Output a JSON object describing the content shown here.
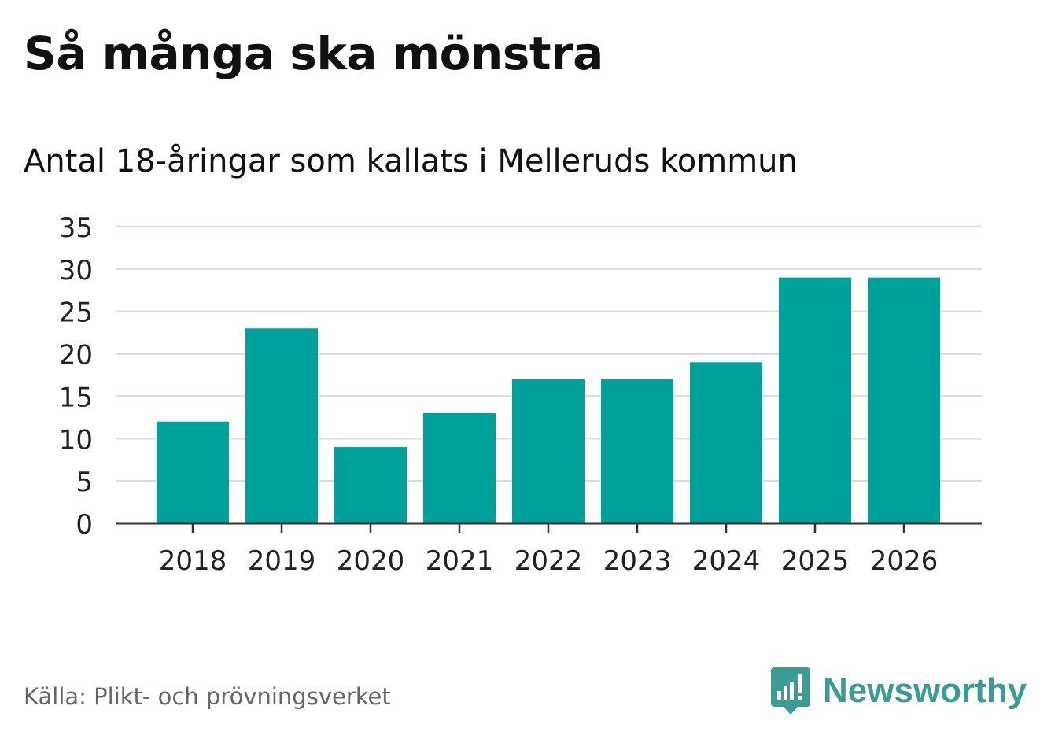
{
  "header": {
    "title": "Så många ska mönstra",
    "subtitle": "Antal 18-åringar som kallats i Melleruds kommun"
  },
  "footer": {
    "source": "Källa: Plikt- och prövningsverket",
    "brand_name": "Newsworthy"
  },
  "colors": {
    "bar": "#00a19a",
    "grid": "#dcdcdc",
    "axis": "#333333",
    "tick_text": "#222222",
    "brand": "#3a9c93"
  },
  "chart_data": {
    "type": "bar",
    "title": "Så många ska mönstra",
    "subtitle": "Antal 18-åringar som kallats i Melleruds kommun",
    "xlabel": "",
    "ylabel": "",
    "categories": [
      "2018",
      "2019",
      "2020",
      "2021",
      "2022",
      "2023",
      "2024",
      "2025",
      "2026"
    ],
    "values": [
      12,
      23,
      9,
      13,
      17,
      17,
      19,
      29,
      29
    ],
    "ylim": [
      0,
      35
    ],
    "yticks": [
      0,
      5,
      10,
      15,
      20,
      25,
      30,
      35
    ],
    "grid": true,
    "legend": "none"
  }
}
